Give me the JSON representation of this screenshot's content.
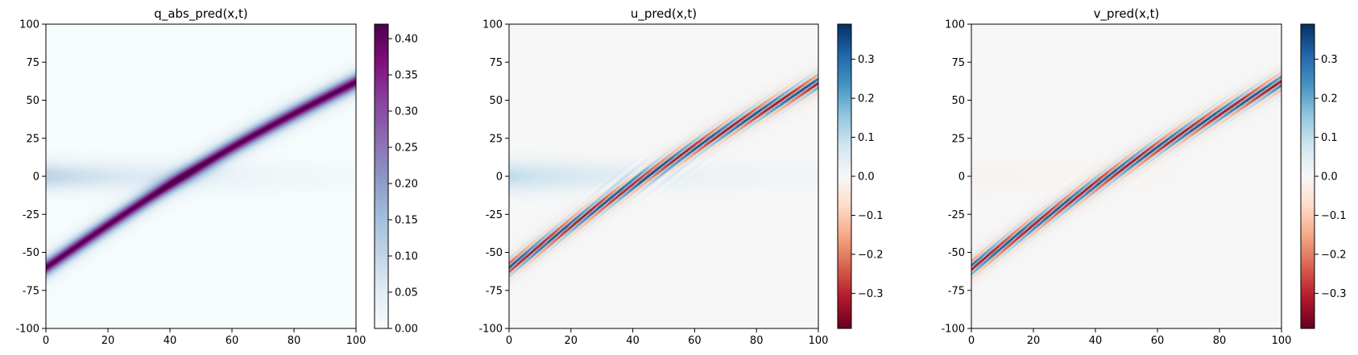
{
  "chart_data": [
    {
      "type": "heatmap",
      "title": "q_abs_pred(x,t)",
      "xlabel": "",
      "ylabel": "",
      "xlim": [
        0,
        100
      ],
      "ylim": [
        -100,
        100
      ],
      "xticks": [
        0,
        20,
        40,
        60,
        80,
        100
      ],
      "yticks": [
        -100,
        -75,
        -50,
        -25,
        0,
        25,
        50,
        75,
        100
      ],
      "field": "abs",
      "colormap": "BuPu",
      "colorbar": {
        "min": 0.0,
        "max": 0.42,
        "ticks": [
          0.0,
          0.05,
          0.1,
          0.15,
          0.2,
          0.25,
          0.3,
          0.35,
          0.4
        ],
        "tick_labels": [
          "0.00",
          "0.05",
          "0.10",
          "0.15",
          "0.20",
          "0.25",
          "0.30",
          "0.35",
          "0.40"
        ]
      },
      "description_values": {
        "soliton_1": {
          "x_at_t0": -60,
          "x_at_t100": 62
        },
        "peak_value": 0.42
      }
    },
    {
      "type": "heatmap",
      "title": "u_pred(x,t)",
      "xlabel": "",
      "ylabel": "",
      "xlim": [
        0,
        100
      ],
      "ylim": [
        -100,
        100
      ],
      "xticks": [
        0,
        20,
        40,
        60,
        80,
        100
      ],
      "yticks": [
        -100,
        -75,
        -50,
        -25,
        0,
        25,
        50,
        75,
        100
      ],
      "field": "real",
      "colormap": "RdBu",
      "colorbar": {
        "min": -0.39,
        "max": 0.39,
        "ticks": [
          0.3,
          0.2,
          0.1,
          0.0,
          -0.1,
          -0.2,
          -0.3
        ],
        "tick_labels": [
          "0.3",
          "0.2",
          "0.1",
          "0.0",
          "−0.1",
          "−0.2",
          "−0.3"
        ]
      }
    },
    {
      "type": "heatmap",
      "title": "v_pred(x,t)",
      "xlabel": "",
      "ylabel": "",
      "xlim": [
        0,
        100
      ],
      "ylim": [
        -100,
        100
      ],
      "xticks": [
        0,
        20,
        40,
        60,
        80,
        100
      ],
      "yticks": [
        -100,
        -75,
        -50,
        -25,
        0,
        25,
        50,
        75,
        100
      ],
      "field": "imag",
      "colormap": "RdBu",
      "colorbar": {
        "min": -0.39,
        "max": 0.39,
        "ticks": [
          0.3,
          0.2,
          0.1,
          0.0,
          -0.1,
          -0.2,
          -0.3
        ],
        "tick_labels": [
          "0.3",
          "0.2",
          "0.1",
          "0.0",
          "−0.1",
          "−0.2",
          "−0.3"
        ]
      }
    }
  ],
  "colors": {
    "BuPu_low": "#f7fcfd",
    "BuPu_high": "#6b0d6b",
    "RdBu_neg": "#67001f",
    "RdBu_mid": "#f7f7f7",
    "RdBu_pos": "#053061"
  }
}
